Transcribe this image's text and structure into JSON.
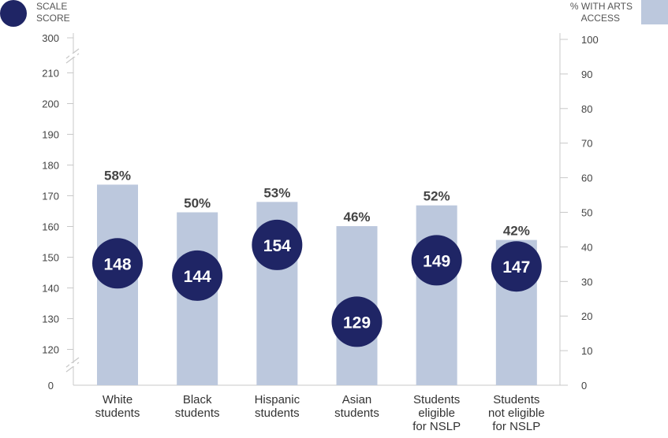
{
  "chart_data": {
    "type": "bar",
    "title": "",
    "categories": [
      [
        "White",
        "students"
      ],
      [
        "Black",
        "students"
      ],
      [
        "Hispanic",
        "students"
      ],
      [
        "Asian",
        "students"
      ],
      [
        "Students",
        "eligible",
        "for NSLP"
      ],
      [
        "Students",
        "not eligible",
        "for NSLP"
      ]
    ],
    "series": [
      {
        "name": "% WITH ARTS ACCESS",
        "kind": "bar",
        "axis": "right",
        "values": [
          58,
          50,
          53,
          46,
          52,
          42
        ],
        "labels": [
          "58%",
          "50%",
          "53%",
          "46%",
          "52%",
          "42%"
        ],
        "color": "#bcc8dd"
      },
      {
        "name": "SCALE SCORE",
        "kind": "marker",
        "axis": "left",
        "values": [
          148,
          144,
          154,
          129,
          149,
          147
        ],
        "labels": [
          "148",
          "144",
          "154",
          "129",
          "149",
          "147"
        ],
        "color": "#1f2565"
      }
    ],
    "left_axis": {
      "range": [
        115,
        215
      ],
      "ticks": [
        120,
        130,
        140,
        150,
        160,
        170,
        180,
        190,
        200,
        210
      ],
      "tick_labels": [
        "120",
        "130",
        "140",
        "150",
        "160",
        "170",
        "180",
        "190",
        "200",
        "210"
      ],
      "top_label": "300",
      "bottom_label": "0",
      "broken": true
    },
    "right_axis": {
      "range": [
        0,
        100
      ],
      "ticks": [
        0,
        10,
        20,
        30,
        40,
        50,
        60,
        70,
        80,
        90,
        100
      ],
      "tick_labels": [
        "0",
        "10",
        "20",
        "30",
        "40",
        "50",
        "60",
        "70",
        "80",
        "90",
        "100"
      ]
    },
    "legend": {
      "left": {
        "line1": "SCALE",
        "line2": "SCORE",
        "position": "top-left"
      },
      "right": {
        "line1": "% WITH ARTS",
        "line2": "ACCESS",
        "position": "top-right"
      }
    },
    "grid": false
  }
}
